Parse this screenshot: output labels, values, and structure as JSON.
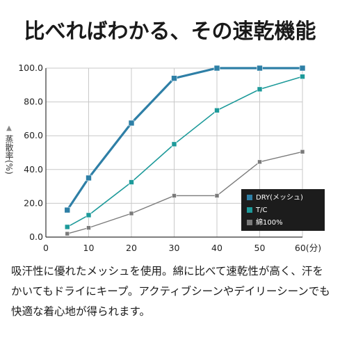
{
  "title": "比べればわかる、その速乾機能",
  "caption": "吸汗性に優れたメッシュを使用。綿に比べて速乾性が高く、汗をかいてもドライにキープ。アクティブシーンやデイリーシーンでも快適な着心地が得られます。",
  "chart_data": {
    "type": "line",
    "ylabel": "蒸散率(%)",
    "x_unit_label": "60(分)",
    "x": [
      5,
      10,
      20,
      30,
      40,
      50,
      60
    ],
    "xticks": [
      0,
      10,
      20,
      30,
      40,
      50,
      60
    ],
    "xlim": [
      0,
      60
    ],
    "yticks": [
      "0.0",
      "20.0",
      "40.0",
      "60.0",
      "80.0",
      "100.0"
    ],
    "ylim": [
      0,
      100
    ],
    "grid": true,
    "legend_position": "bottom-right",
    "series": [
      {
        "name": "DRY(メッシュ)",
        "color": "#2e7fa6",
        "values": [
          16,
          35,
          67.5,
          94,
          100,
          100,
          100
        ]
      },
      {
        "name": "T/C",
        "color": "#1d9a9a",
        "values": [
          6,
          13,
          32.5,
          55,
          75,
          87.5,
          95
        ]
      },
      {
        "name": "綿100%",
        "color": "#7a7a7a",
        "values": [
          2,
          5.5,
          14,
          24.5,
          24.5,
          44.5,
          50.5
        ]
      }
    ]
  }
}
